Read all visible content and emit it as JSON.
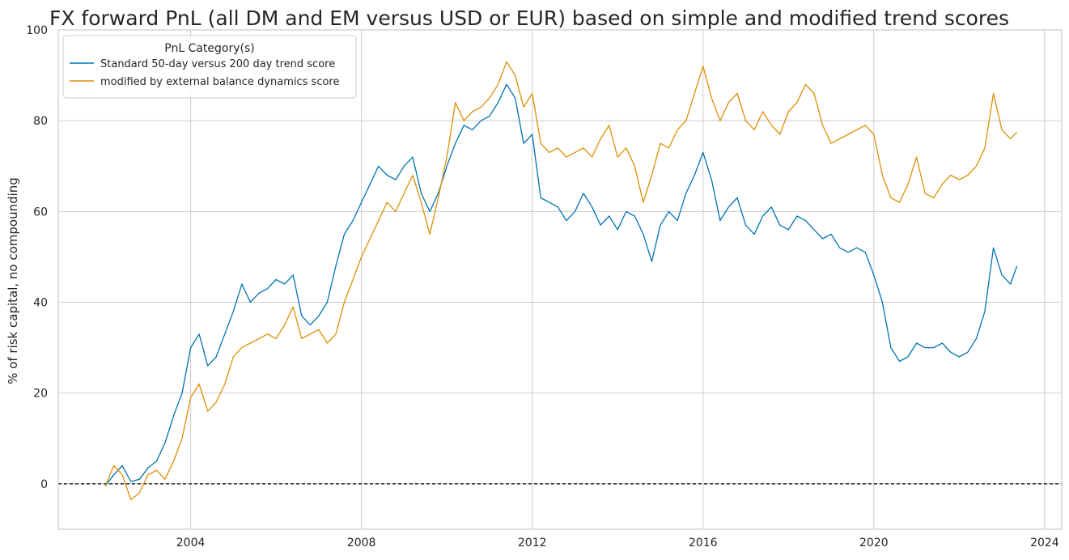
{
  "chart_data": {
    "type": "line",
    "title": "FX forward PnL (all DM and EM versus USD or EUR) based on simple and modified trend scores",
    "xlabel": "",
    "ylabel": "% of risk capital, no compounding",
    "xlim": [
      2000.9,
      2024.4
    ],
    "ylim": [
      -10,
      100
    ],
    "x_ticks": [
      "2004",
      "2008",
      "2012",
      "2016",
      "2020",
      "2024"
    ],
    "y_ticks": [
      "0",
      "20",
      "40",
      "60",
      "80",
      "100"
    ],
    "grid": true,
    "reference_line": {
      "y": 0,
      "style": "dashed",
      "color": "#000000"
    },
    "legend": {
      "title": "PnL Category(s)",
      "placement": "top-left"
    },
    "series": [
      {
        "name": "Standard 50-day versus 200 day trend score",
        "color": "#0173b2",
        "x": [
          2002.0,
          2002.2,
          2002.4,
          2002.6,
          2002.8,
          2003.0,
          2003.2,
          2003.4,
          2003.6,
          2003.8,
          2004.0,
          2004.2,
          2004.4,
          2004.6,
          2004.8,
          2005.0,
          2005.2,
          2005.4,
          2005.6,
          2005.8,
          2006.0,
          2006.2,
          2006.4,
          2006.6,
          2006.8,
          2007.0,
          2007.2,
          2007.4,
          2007.6,
          2007.8,
          2008.0,
          2008.2,
          2008.4,
          2008.6,
          2008.8,
          2009.0,
          2009.2,
          2009.4,
          2009.6,
          2009.8,
          2010.0,
          2010.2,
          2010.4,
          2010.6,
          2010.8,
          2011.0,
          2011.2,
          2011.4,
          2011.6,
          2011.8,
          2012.0,
          2012.2,
          2012.4,
          2012.6,
          2012.8,
          2013.0,
          2013.2,
          2013.4,
          2013.6,
          2013.8,
          2014.0,
          2014.2,
          2014.4,
          2014.6,
          2014.8,
          2015.0,
          2015.2,
          2015.4,
          2015.6,
          2015.8,
          2016.0,
          2016.2,
          2016.4,
          2016.6,
          2016.8,
          2017.0,
          2017.2,
          2017.4,
          2017.6,
          2017.8,
          2018.0,
          2018.2,
          2018.4,
          2018.6,
          2018.8,
          2019.0,
          2019.2,
          2019.4,
          2019.6,
          2019.8,
          2020.0,
          2020.2,
          2020.4,
          2020.6,
          2020.8,
          2021.0,
          2021.2,
          2021.4,
          2021.6,
          2021.8,
          2022.0,
          2022.2,
          2022.4,
          2022.6,
          2022.8,
          2023.0,
          2023.2,
          2023.35
        ],
        "values": [
          -0.5,
          2.0,
          4.0,
          0.5,
          1.0,
          3.5,
          5.0,
          9.0,
          15.0,
          20.0,
          30.0,
          33.0,
          26.0,
          28.0,
          33.0,
          38.0,
          44.0,
          40.0,
          42.0,
          43.0,
          45.0,
          44.0,
          46.0,
          37.0,
          35.0,
          37.0,
          40.0,
          48.0,
          55.0,
          58.0,
          62.0,
          66.0,
          70.0,
          68.0,
          67.0,
          70.0,
          72.0,
          64.0,
          60.0,
          64.0,
          70.0,
          75.0,
          79.0,
          78.0,
          80.0,
          81.0,
          84.0,
          88.0,
          85.0,
          75.0,
          77.0,
          63.0,
          62.0,
          61.0,
          58.0,
          60.0,
          64.0,
          61.0,
          57.0,
          59.0,
          56.0,
          60.0,
          59.0,
          55.0,
          49.0,
          57.0,
          60.0,
          58.0,
          64.0,
          68.0,
          73.0,
          67.0,
          58.0,
          61.0,
          63.0,
          57.0,
          55.0,
          59.0,
          61.0,
          57.0,
          56.0,
          59.0,
          58.0,
          56.0,
          54.0,
          55.0,
          52.0,
          51.0,
          52.0,
          51.0,
          46.0,
          40.0,
          30.0,
          27.0,
          28.0,
          31.0,
          30.0,
          30.0,
          31.0,
          29.0,
          28.0,
          29.0,
          32.0,
          38.0,
          52.0,
          46.0,
          44.0,
          48.0
        ]
      },
      {
        "name": "modified by external balance dynamics score",
        "color": "#de8f05",
        "x": [
          2002.0,
          2002.2,
          2002.4,
          2002.6,
          2002.8,
          2003.0,
          2003.2,
          2003.4,
          2003.6,
          2003.8,
          2004.0,
          2004.2,
          2004.4,
          2004.6,
          2004.8,
          2005.0,
          2005.2,
          2005.4,
          2005.6,
          2005.8,
          2006.0,
          2006.2,
          2006.4,
          2006.6,
          2006.8,
          2007.0,
          2007.2,
          2007.4,
          2007.6,
          2007.8,
          2008.0,
          2008.2,
          2008.4,
          2008.6,
          2008.8,
          2009.0,
          2009.2,
          2009.4,
          2009.6,
          2009.8,
          2010.0,
          2010.2,
          2010.4,
          2010.6,
          2010.8,
          2011.0,
          2011.2,
          2011.4,
          2011.6,
          2011.8,
          2012.0,
          2012.2,
          2012.4,
          2012.6,
          2012.8,
          2013.0,
          2013.2,
          2013.4,
          2013.6,
          2013.8,
          2014.0,
          2014.2,
          2014.4,
          2014.6,
          2014.8,
          2015.0,
          2015.2,
          2015.4,
          2015.6,
          2015.8,
          2016.0,
          2016.2,
          2016.4,
          2016.6,
          2016.8,
          2017.0,
          2017.2,
          2017.4,
          2017.6,
          2017.8,
          2018.0,
          2018.2,
          2018.4,
          2018.6,
          2018.8,
          2019.0,
          2019.2,
          2019.4,
          2019.6,
          2019.8,
          2020.0,
          2020.2,
          2020.4,
          2020.6,
          2020.8,
          2021.0,
          2021.2,
          2021.4,
          2021.6,
          2021.8,
          2022.0,
          2022.2,
          2022.4,
          2022.6,
          2022.8,
          2023.0,
          2023.2,
          2023.35
        ],
        "values": [
          -0.5,
          4.0,
          2.0,
          -3.5,
          -2.0,
          2.0,
          3.0,
          1.0,
          5.0,
          10.0,
          19.0,
          22.0,
          16.0,
          18.0,
          22.0,
          28.0,
          30.0,
          31.0,
          32.0,
          33.0,
          32.0,
          35.0,
          39.0,
          32.0,
          33.0,
          34.0,
          31.0,
          33.0,
          40.0,
          45.0,
          50.0,
          54.0,
          58.0,
          62.0,
          60.0,
          64.0,
          68.0,
          62.0,
          55.0,
          63.0,
          72.0,
          84.0,
          80.0,
          82.0,
          83.0,
          85.0,
          88.0,
          93.0,
          90.0,
          83.0,
          86.0,
          75.0,
          73.0,
          74.0,
          72.0,
          73.0,
          74.0,
          72.0,
          76.0,
          79.0,
          72.0,
          74.0,
          70.0,
          62.0,
          68.0,
          75.0,
          74.0,
          78.0,
          80.0,
          86.0,
          92.0,
          85.0,
          80.0,
          84.0,
          86.0,
          80.0,
          78.0,
          82.0,
          79.0,
          77.0,
          82.0,
          84.0,
          88.0,
          86.0,
          79.0,
          75.0,
          76.0,
          77.0,
          78.0,
          79.0,
          77.0,
          68.0,
          63.0,
          62.0,
          66.0,
          72.0,
          64.0,
          63.0,
          66.0,
          68.0,
          67.0,
          68.0,
          70.0,
          74.0,
          86.0,
          78.0,
          76.0,
          77.5
        ]
      }
    ]
  }
}
